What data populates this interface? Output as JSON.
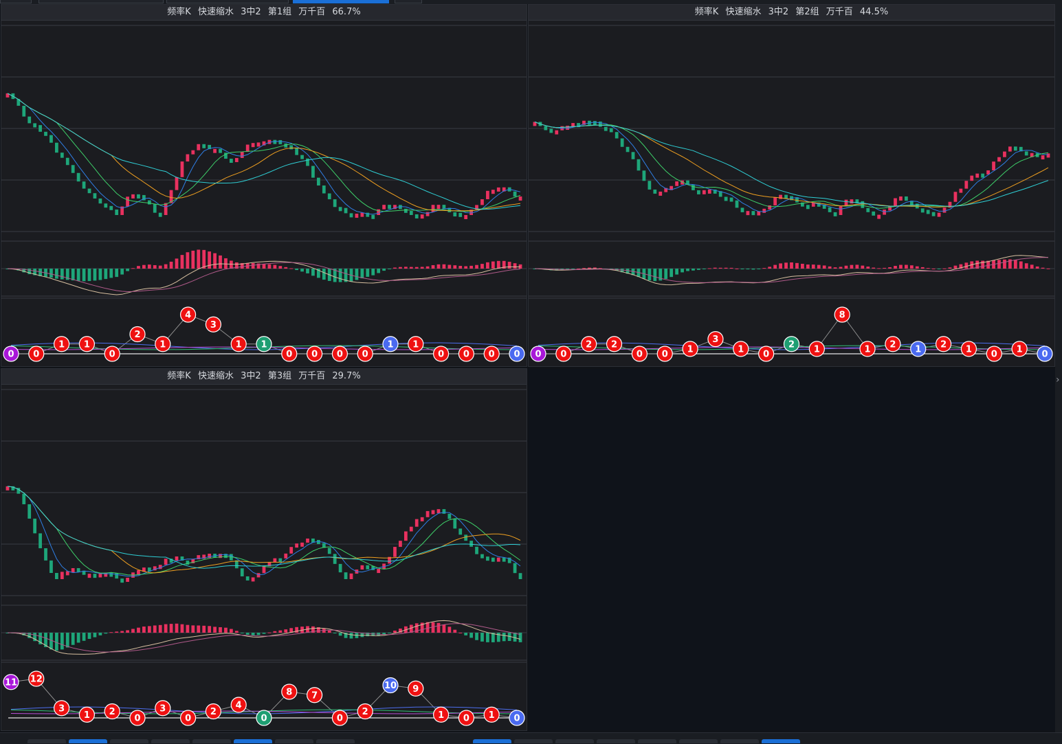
{
  "panels": [
    {
      "title": {
        "prefix": "频率K",
        "name": "快速缩水",
        "rule": "3中2",
        "group": "第1组",
        "unit": "万千百",
        "pct": "66.7%"
      },
      "seed": 11,
      "startLevel": 0.7,
      "trend": -0.35,
      "badges": [
        {
          "v": "0",
          "c": "purple",
          "lvl": 0
        },
        {
          "v": "0",
          "c": "red",
          "lvl": 0
        },
        {
          "v": "1",
          "c": "red",
          "lvl": 1
        },
        {
          "v": "1",
          "c": "red",
          "lvl": 1
        },
        {
          "v": "0",
          "c": "red",
          "lvl": 0
        },
        {
          "v": "2",
          "c": "red",
          "lvl": 2
        },
        {
          "v": "1",
          "c": "red",
          "lvl": 1
        },
        {
          "v": "4",
          "c": "red",
          "lvl": 4
        },
        {
          "v": "3",
          "c": "red",
          "lvl": 3
        },
        {
          "v": "1",
          "c": "red",
          "lvl": 1
        },
        {
          "v": "1",
          "c": "green",
          "lvl": 1
        },
        {
          "v": "0",
          "c": "red",
          "lvl": 0
        },
        {
          "v": "0",
          "c": "red",
          "lvl": 0
        },
        {
          "v": "0",
          "c": "red",
          "lvl": 0
        },
        {
          "v": "0",
          "c": "red",
          "lvl": 0
        },
        {
          "v": "1",
          "c": "blue",
          "lvl": 1
        },
        {
          "v": "1",
          "c": "red",
          "lvl": 1
        },
        {
          "v": "0",
          "c": "red",
          "lvl": 0
        },
        {
          "v": "0",
          "c": "red",
          "lvl": 0
        },
        {
          "v": "0",
          "c": "red",
          "lvl": 0
        },
        {
          "v": "0",
          "c": "blue",
          "lvl": 0
        }
      ]
    },
    {
      "title": {
        "prefix": "频率K",
        "name": "快速缩水",
        "rule": "3中2",
        "group": "第2组",
        "unit": "万千百",
        "pct": "44.5%"
      },
      "seed": 23,
      "startLevel": 0.55,
      "trend": -0.1,
      "badges": [
        {
          "v": "0",
          "c": "purple",
          "lvl": 0
        },
        {
          "v": "0",
          "c": "red",
          "lvl": 0
        },
        {
          "v": "2",
          "c": "red",
          "lvl": 2
        },
        {
          "v": "2",
          "c": "red",
          "lvl": 2
        },
        {
          "v": "0",
          "c": "red",
          "lvl": 0
        },
        {
          "v": "0",
          "c": "red",
          "lvl": 0
        },
        {
          "v": "1",
          "c": "red",
          "lvl": 1
        },
        {
          "v": "3",
          "c": "red",
          "lvl": 3
        },
        {
          "v": "1",
          "c": "red",
          "lvl": 1
        },
        {
          "v": "0",
          "c": "red",
          "lvl": 0
        },
        {
          "v": "2",
          "c": "green",
          "lvl": 2
        },
        {
          "v": "1",
          "c": "red",
          "lvl": 1
        },
        {
          "v": "8",
          "c": "red",
          "lvl": 8
        },
        {
          "v": "1",
          "c": "red",
          "lvl": 1
        },
        {
          "v": "2",
          "c": "red",
          "lvl": 2
        },
        {
          "v": "1",
          "c": "blue",
          "lvl": 1
        },
        {
          "v": "2",
          "c": "red",
          "lvl": 2
        },
        {
          "v": "1",
          "c": "red",
          "lvl": 1
        },
        {
          "v": "0",
          "c": "red",
          "lvl": 0
        },
        {
          "v": "1",
          "c": "red",
          "lvl": 1
        },
        {
          "v": "0",
          "c": "blue",
          "lvl": 0
        }
      ]
    },
    {
      "title": {
        "prefix": "频率K",
        "name": "快速缩水",
        "rule": "3中2",
        "group": "第3组",
        "unit": "万千百",
        "pct": "29.7%"
      },
      "seed": 37,
      "startLevel": 0.55,
      "trend": -0.45,
      "badges": [
        {
          "v": "11",
          "c": "purple",
          "lvl": 11
        },
        {
          "v": "12",
          "c": "red",
          "lvl": 12
        },
        {
          "v": "3",
          "c": "red",
          "lvl": 3
        },
        {
          "v": "1",
          "c": "red",
          "lvl": 1
        },
        {
          "v": "2",
          "c": "red",
          "lvl": 2
        },
        {
          "v": "0",
          "c": "red",
          "lvl": 0
        },
        {
          "v": "3",
          "c": "red",
          "lvl": 3
        },
        {
          "v": "0",
          "c": "red",
          "lvl": 0
        },
        {
          "v": "2",
          "c": "red",
          "lvl": 2
        },
        {
          "v": "4",
          "c": "red",
          "lvl": 4
        },
        {
          "v": "0",
          "c": "green",
          "lvl": 0
        },
        {
          "v": "8",
          "c": "red",
          "lvl": 8
        },
        {
          "v": "7",
          "c": "red",
          "lvl": 7
        },
        {
          "v": "0",
          "c": "red",
          "lvl": 0
        },
        {
          "v": "2",
          "c": "red",
          "lvl": 2
        },
        {
          "v": "10",
          "c": "blue",
          "lvl": 10
        },
        {
          "v": "9",
          "c": "red",
          "lvl": 9
        },
        {
          "v": "1",
          "c": "red",
          "lvl": 1
        },
        {
          "v": "0",
          "c": "red",
          "lvl": 0
        },
        {
          "v": "1",
          "c": "red",
          "lvl": 1
        },
        {
          "v": "0",
          "c": "blue",
          "lvl": 0
        }
      ]
    }
  ],
  "colors": {
    "up": "#e8315f",
    "down": "#1ea67a",
    "ma5": "#2f7fe6",
    "ma10": "#3ed16a",
    "ma20": "#f0a020",
    "ma30": "#2fd0d6",
    "dif": "#d8c0a0",
    "dea": "#b05a8a",
    "badge_red": "#ee1111",
    "badge_purple": "#a817d8",
    "badge_green": "#1e9e72",
    "badge_blue": "#4a6af0"
  }
}
